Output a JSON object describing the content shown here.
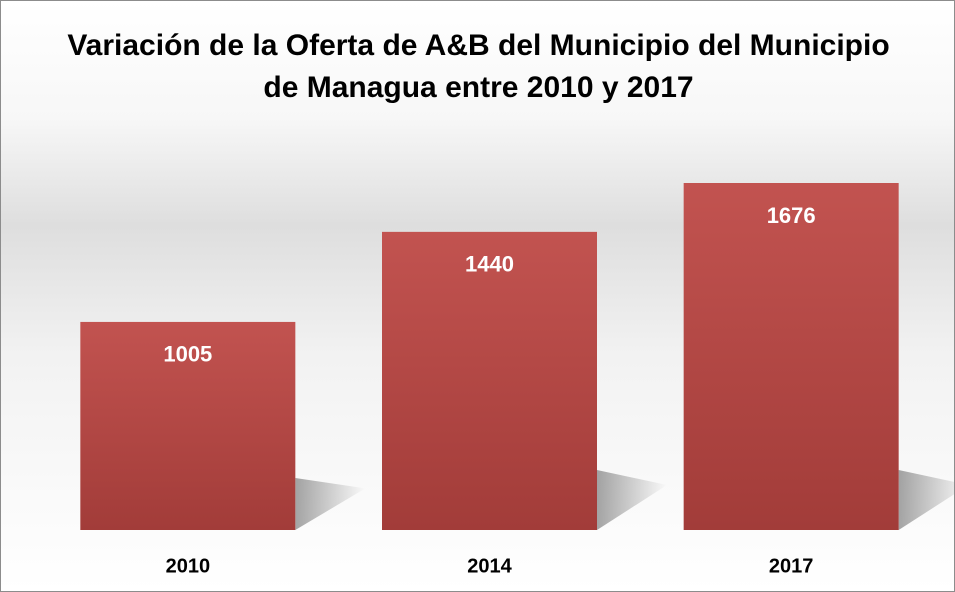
{
  "chart_data": {
    "type": "bar",
    "title": "Variación de la Oferta de A&B del Municipio del Municipio de Managua entre 2010 y 2017",
    "categories": [
      "2010",
      "2014",
      "2017"
    ],
    "values": [
      1005,
      1440,
      1676
    ],
    "color": "#c0504d"
  }
}
